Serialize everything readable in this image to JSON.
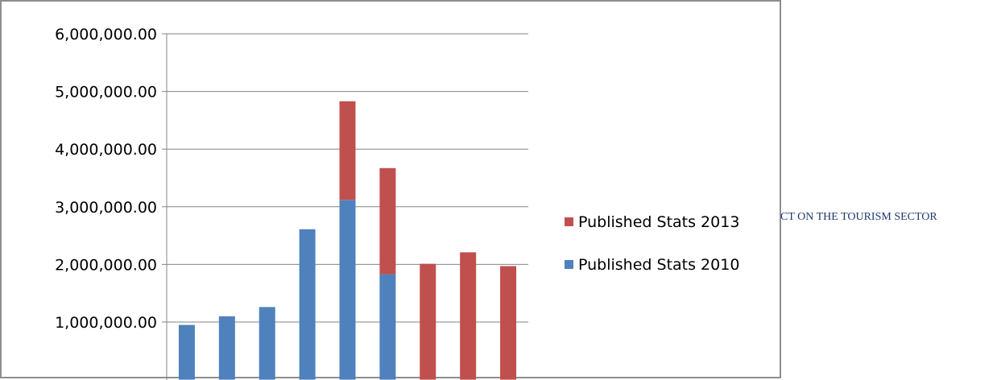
{
  "chart_data": {
    "type": "bar",
    "stacked": true,
    "categories": [
      "",
      "",
      "",
      "",
      "",
      "",
      "",
      "",
      ""
    ],
    "series": [
      {
        "name": "Published Stats 2010",
        "color": "#4f81bd",
        "values": [
          950000,
          1100000,
          1260000,
          2610000,
          3120000,
          1830000,
          0,
          0,
          0
        ]
      },
      {
        "name": "Published Stats 2013",
        "color": "#c0504d",
        "values": [
          0,
          0,
          0,
          0,
          1710000,
          1840000,
          2010000,
          2210000,
          1970000
        ]
      }
    ],
    "yticks": [
      "1,000,000.00",
      "2,000,000.00",
      "3,000,000.00",
      "4,000,000.00",
      "5,000,000.00",
      "6,000,000.00"
    ],
    "ytick_values": [
      1000000,
      2000000,
      3000000,
      4000000,
      5000000,
      6000000
    ],
    "ylim": [
      0,
      6000000
    ],
    "grid": true,
    "legend_position": "right",
    "legend_order": [
      "Published Stats 2013",
      "Published Stats 2010"
    ]
  },
  "side_caption": "CT ON THE TOURISM SECTOR"
}
